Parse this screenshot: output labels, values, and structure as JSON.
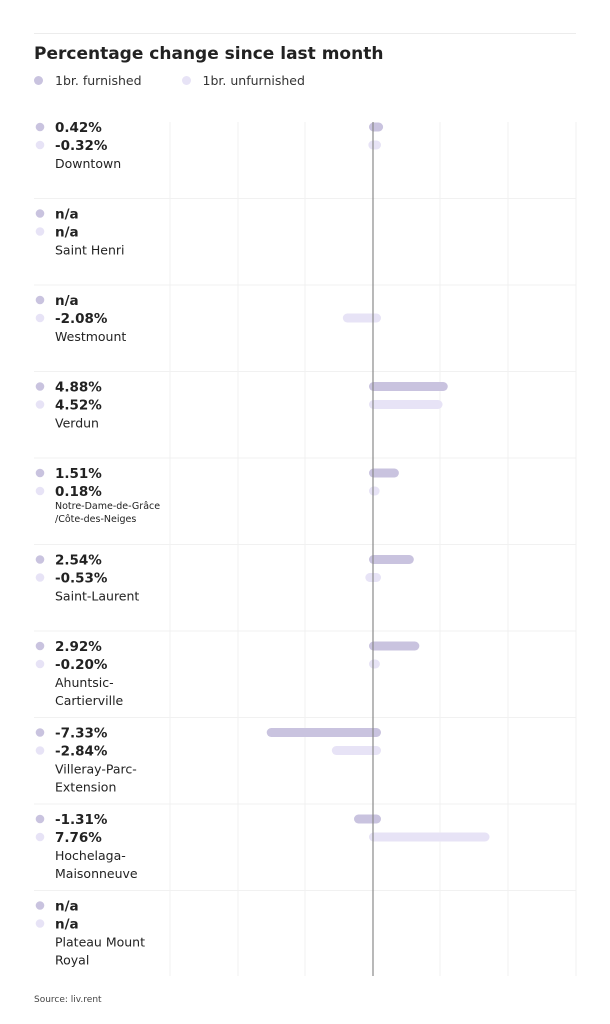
{
  "chart_data": {
    "type": "bar",
    "orientation": "horizontal",
    "title": "Percentage change since last month",
    "source": "Source: liv.rent",
    "legend_position": "top-left",
    "colors": {
      "furnished": "#c9c3df",
      "unfurnished": "#e7e3f6",
      "axis": "#8a8a8a",
      "grid": "#f1f1f1"
    },
    "series": [
      {
        "name": "1br. furnished",
        "key": "furnished"
      },
      {
        "name": "1br. unfurnished",
        "key": "unfurnished"
      }
    ],
    "xlim": [
      -10,
      13
    ],
    "categories": [
      {
        "label_lines": [
          "Downtown"
        ],
        "small": false,
        "furnished": {
          "text": "0.42%",
          "value": 0.42
        },
        "unfurnished": {
          "text": "-0.32%",
          "value": -0.32
        }
      },
      {
        "label_lines": [
          "Saint Henri"
        ],
        "small": false,
        "furnished": {
          "text": "n/a",
          "value": null
        },
        "unfurnished": {
          "text": "n/a",
          "value": null
        }
      },
      {
        "label_lines": [
          "Westmount"
        ],
        "small": false,
        "furnished": {
          "text": "n/a",
          "value": null
        },
        "unfurnished": {
          "text": "-2.08%",
          "value": -2.08
        }
      },
      {
        "label_lines": [
          "Verdun"
        ],
        "small": false,
        "furnished": {
          "text": "4.88%",
          "value": 4.88
        },
        "unfurnished": {
          "text": "4.52%",
          "value": 4.52
        }
      },
      {
        "label_lines": [
          "Notre-Dame-de-Grâce",
          "/Côte-des-Neiges"
        ],
        "small": true,
        "furnished": {
          "text": "1.51%",
          "value": 1.51
        },
        "unfurnished": {
          "text": "0.18%",
          "value": 0.18
        }
      },
      {
        "label_lines": [
          "Saint-Laurent"
        ],
        "small": false,
        "furnished": {
          "text": "2.54%",
          "value": 2.54
        },
        "unfurnished": {
          "text": "-0.53%",
          "value": -0.53
        }
      },
      {
        "label_lines": [
          "Ahuntsic-",
          "Cartierville"
        ],
        "small": false,
        "furnished": {
          "text": "2.92%",
          "value": 2.92
        },
        "unfurnished": {
          "text": "-0.20%",
          "value": -0.2
        }
      },
      {
        "label_lines": [
          "Villeray-Parc-",
          "Extension"
        ],
        "small": false,
        "furnished": {
          "text": "-7.33%",
          "value": -7.33
        },
        "unfurnished": {
          "text": "-2.84%",
          "value": -2.84
        }
      },
      {
        "label_lines": [
          "Hochelaga-",
          "Maisonneuve"
        ],
        "small": false,
        "furnished": {
          "text": "-1.31%",
          "value": -1.31
        },
        "unfurnished": {
          "text": "7.76%",
          "value": 7.76
        }
      },
      {
        "label_lines": [
          "Plateau Mount",
          "Royal"
        ],
        "small": false,
        "furnished": {
          "text": "n/a",
          "value": null
        },
        "unfurnished": {
          "text": "n/a",
          "value": null
        }
      }
    ]
  }
}
